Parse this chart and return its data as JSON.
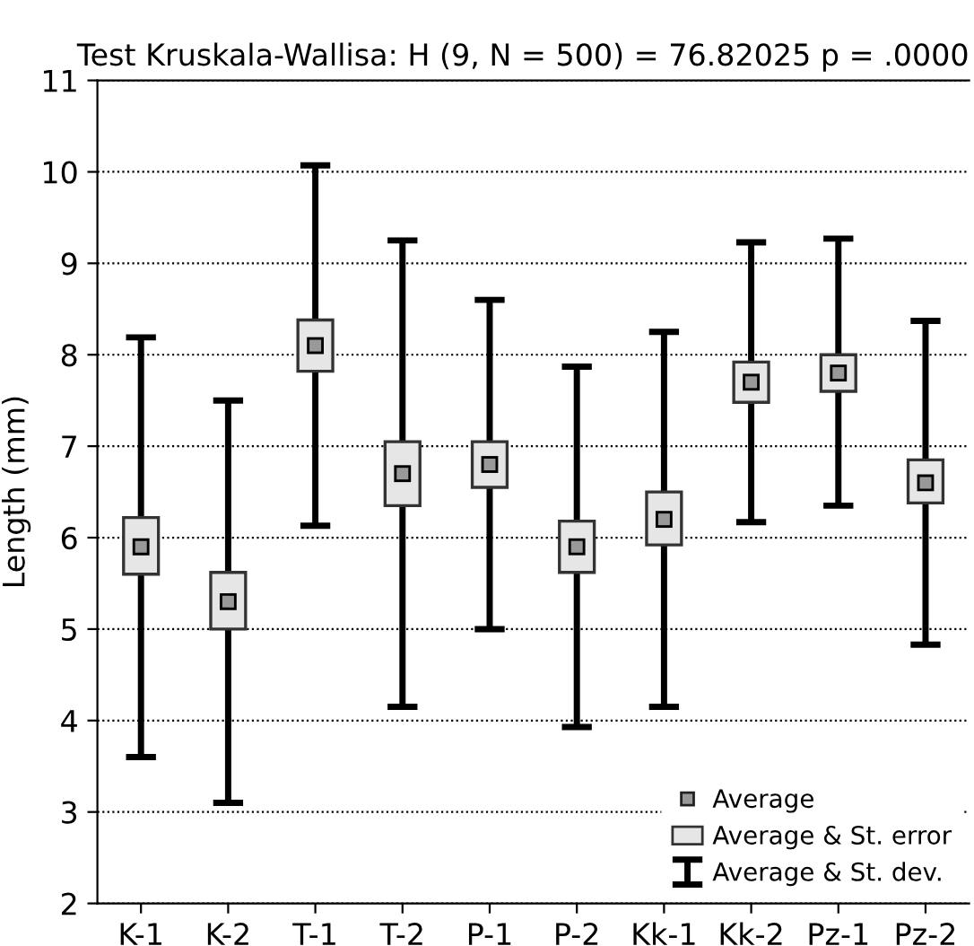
{
  "chart_data": {
    "type": "scatter",
    "title": "Test Kruskala-Wallisa: H (9, N = 500) = 76.82025 p = .0000",
    "ylabel": "Length (mm)",
    "categories": [
      "K-1",
      "K-2",
      "T-1",
      "T-2",
      "P-1",
      "P-2",
      "Kk-1",
      "Kk-2",
      "Pz-1",
      "Pz-2"
    ],
    "series": [
      {
        "name": "Average & St. dev.",
        "color": "#000000",
        "marker": "square",
        "values": [
          5.9,
          5.3,
          8.1,
          6.7,
          6.8,
          5.9,
          6.2,
          7.7,
          7.8,
          6.6
        ],
        "errors": [
          [
            3.6,
            8.19
          ],
          [
            3.1,
            7.5
          ],
          [
            6.13,
            10.07
          ],
          [
            4.15,
            9.25
          ],
          [
            5.0,
            8.6
          ],
          [
            3.93,
            7.87
          ],
          [
            4.15,
            8.25
          ],
          [
            6.17,
            9.23
          ],
          [
            6.35,
            9.27
          ],
          [
            4.83,
            8.37
          ]
        ]
      },
      {
        "name": "Average & St. error",
        "type": "bar",
        "color": "#e6e6e6",
        "base": [
          5.6,
          5.0,
          7.82,
          6.35,
          6.55,
          5.62,
          5.92,
          7.48,
          7.6,
          6.38
        ],
        "values": [
          0.62,
          0.62,
          0.56,
          0.7,
          0.5,
          0.56,
          0.58,
          0.44,
          0.4,
          0.47
        ]
      },
      {
        "name": "Average",
        "color": "#999999",
        "values": [
          5.9,
          5.3,
          8.1,
          6.7,
          6.8,
          5.9,
          6.2,
          7.7,
          7.8,
          6.6
        ]
      }
    ],
    "ylim": [
      2,
      11
    ],
    "yticks": [
      2,
      3,
      4,
      5,
      6,
      7,
      8,
      9,
      10,
      11
    ],
    "grid": "y",
    "legend": "lower right",
    "marker": "square"
  }
}
